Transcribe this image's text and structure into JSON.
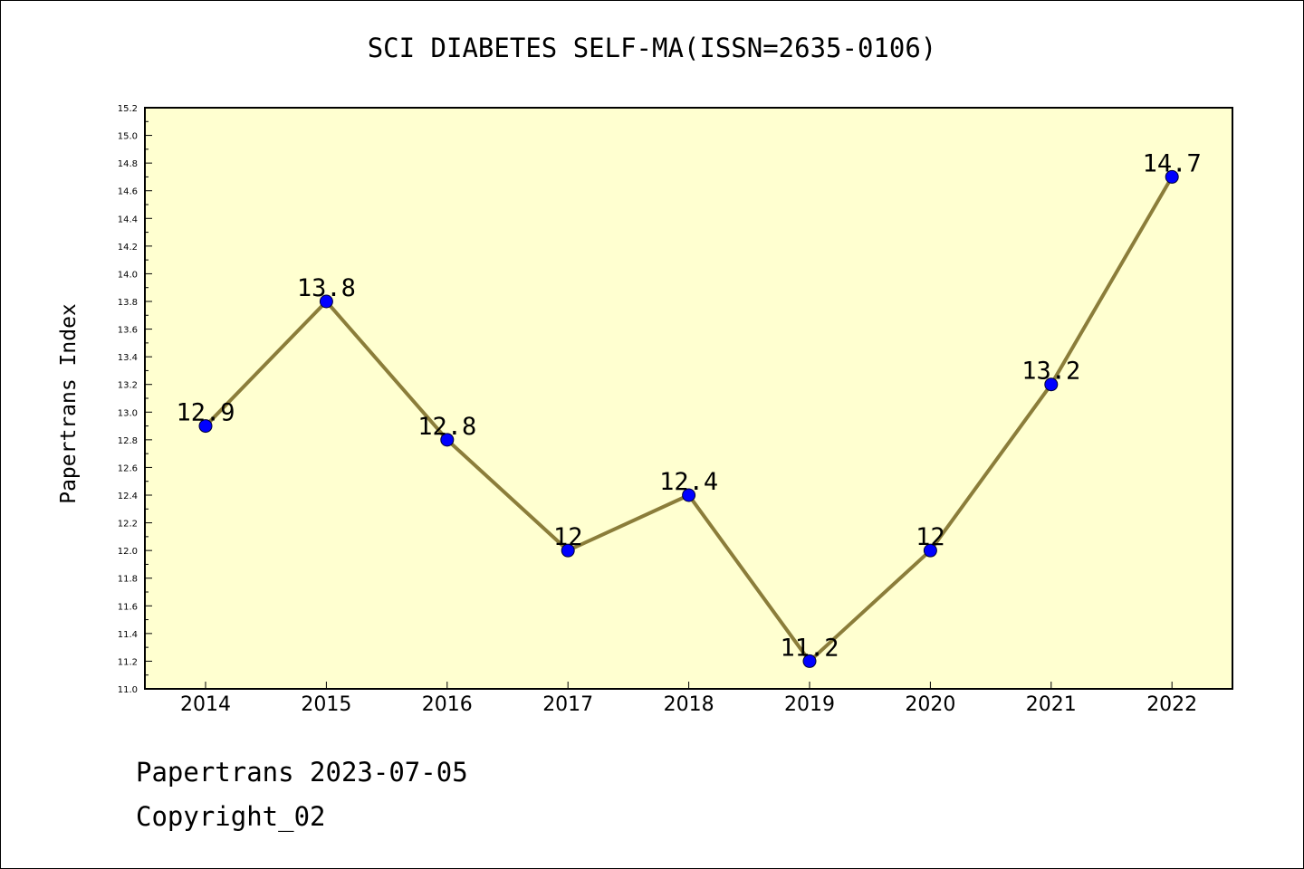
{
  "chart_data": {
    "type": "line",
    "title": "SCI DIABETES SELF-MA(ISSN=2635-0106)",
    "xlabel": "",
    "ylabel": "Papertrans Index",
    "x": [
      "2014",
      "2015",
      "2016",
      "2017",
      "2018",
      "2019",
      "2020",
      "2021",
      "2022"
    ],
    "values": [
      12.9,
      13.8,
      12.8,
      12.0,
      12.4,
      11.2,
      12.0,
      13.2,
      14.7
    ],
    "data_labels": [
      "12.9",
      "13.8",
      "12.8",
      "12",
      "12.4",
      "11.2",
      "12",
      "13.2",
      "14.7"
    ],
    "ylim": [
      11.0,
      15.2
    ],
    "y_ticks": [
      "11.0",
      "11.2",
      "11.4",
      "11.6",
      "11.8",
      "12.0",
      "12.2",
      "12.4",
      "12.6",
      "12.8",
      "13.0",
      "13.2",
      "13.4",
      "13.6",
      "13.8",
      "14.0",
      "14.2",
      "14.4",
      "14.6",
      "14.8",
      "15.0",
      "15.2"
    ],
    "grid": false,
    "colors": {
      "plot_background": "#ffffd0",
      "line": "#8b7d3a",
      "marker": "#0000ff"
    }
  },
  "footer": {
    "date_line": "Papertrans 2023-07-05",
    "copyright": "Copyright_02"
  }
}
